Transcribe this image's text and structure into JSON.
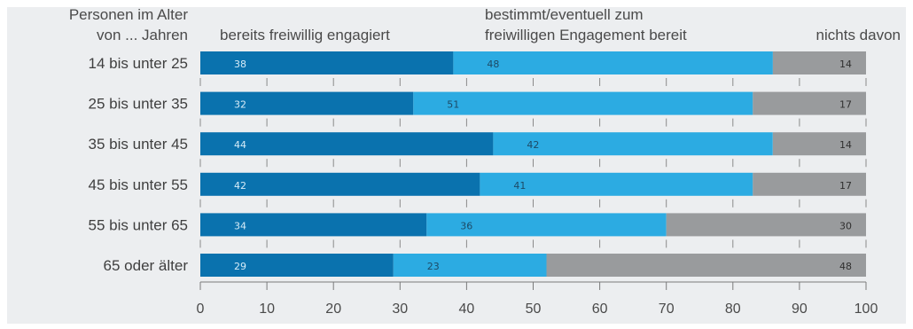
{
  "chart_data": {
    "type": "bar",
    "orientation": "horizontal",
    "stacked": true,
    "row_header": [
      "Personen im Alter",
      "von ... Jahren"
    ],
    "categories": [
      "14 bis unter 25",
      "25 bis unter 35",
      "35 bis unter 45",
      "45 bis unter 55",
      "55 bis unter 65",
      "65 oder älter"
    ],
    "series": [
      {
        "name": "bereits freiwillig engagiert",
        "color": "#0a72ae",
        "label_color": "#d6ecf8",
        "values": [
          38,
          32,
          44,
          42,
          34,
          29
        ]
      },
      {
        "name": "bestimmt/eventuell zum freiwilligen Engagement bereit",
        "name_lines": [
          "bestimmt/eventuell zum",
          "freiwilligen Engagement bereit"
        ],
        "color": "#2cabe2",
        "label_color": "#1d4a66",
        "values": [
          48,
          51,
          42,
          41,
          36,
          23
        ]
      },
      {
        "name": "nichts davon",
        "color": "#999b9d",
        "label_color": "#2f2f2f",
        "values": [
          14,
          17,
          14,
          17,
          30,
          48
        ]
      }
    ],
    "xlim": [
      0,
      100
    ],
    "xticks": [
      0,
      10,
      20,
      30,
      40,
      50,
      60,
      70,
      80,
      90,
      100
    ],
    "background": "#eceef0",
    "grid": false
  }
}
